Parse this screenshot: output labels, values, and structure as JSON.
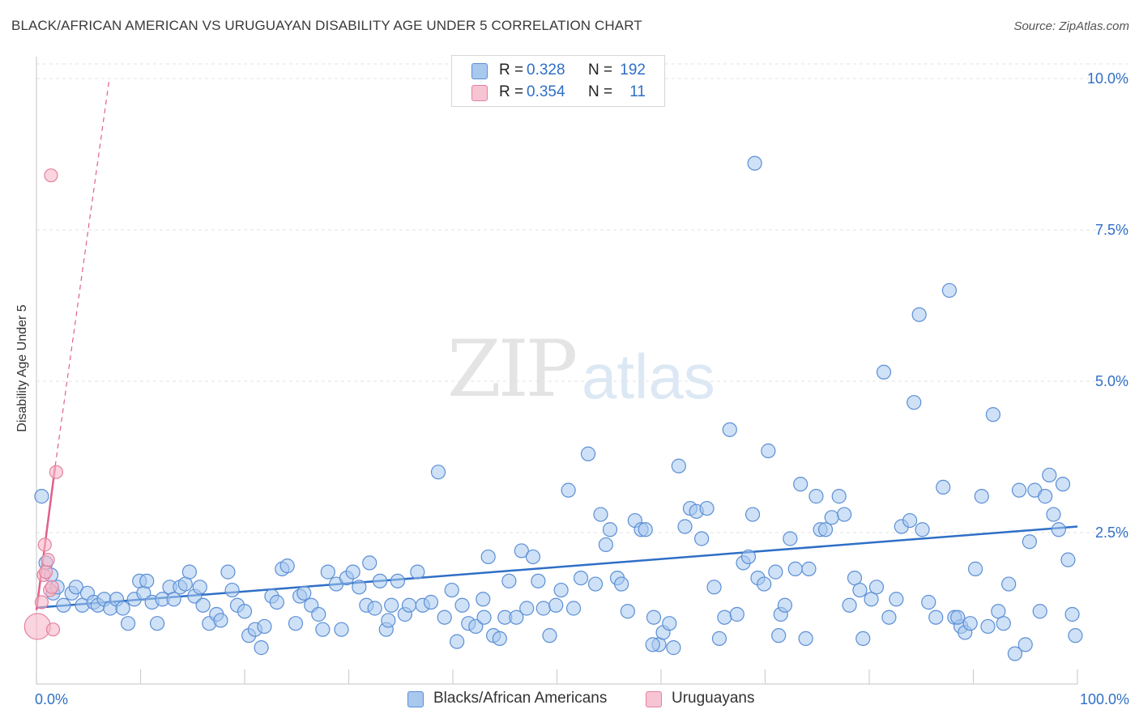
{
  "header": {
    "title": "BLACK/AFRICAN AMERICAN VS URUGUAYAN DISABILITY AGE UNDER 5 CORRELATION CHART",
    "source": "Source: ZipAtlas.com"
  },
  "watermark": {
    "zip": "ZIP",
    "atlas": "atlas"
  },
  "legend": {
    "rows": [
      {
        "r_label": "R =",
        "r_value": "0.328",
        "n_label": "N =",
        "n_value": "192"
      },
      {
        "r_label": "R =",
        "r_value": "0.354",
        "n_label": "N =",
        "n_value": "11"
      }
    ]
  },
  "bottom_legend": {
    "series1": "Blacks/African Americans",
    "series2": "Uruguayans"
  },
  "colors": {
    "blue_fill": "#a8c8ee",
    "blue_stroke": "#5b8fd6",
    "blue_line": "#2f6fc6",
    "pink_fill": "#f6b8c8",
    "pink_stroke": "#e5809e",
    "pink_line": "#e0608a",
    "tick_text": "#2f6fc6"
  },
  "chart_data": {
    "type": "scatter",
    "title": "BLACK/AFRICAN AMERICAN VS URUGUAYAN DISABILITY AGE UNDER 5 CORRELATION CHART",
    "xlabel": "",
    "ylabel": "Disability Age Under 5",
    "xlim": [
      0,
      100
    ],
    "ylim": [
      0,
      10.4
    ],
    "x_tick_labels": [
      "0.0%",
      "100.0%"
    ],
    "y_ticks": [
      2.5,
      5.0,
      7.5,
      10.0
    ],
    "y_tick_labels": [
      "2.5%",
      "5.0%",
      "7.5%",
      "10.0%"
    ],
    "grid": true,
    "series": [
      {
        "name": "Blacks/African Americans",
        "R": 0.328,
        "N": 192,
        "trend": {
          "x": [
            0,
            100
          ],
          "y": [
            1.26,
            2.6
          ]
        },
        "points": [
          [
            0.5,
            3.1
          ],
          [
            0.9,
            2.0
          ],
          [
            1.4,
            1.8
          ],
          [
            1.6,
            1.5
          ],
          [
            2.0,
            1.6
          ],
          [
            2.6,
            1.3
          ],
          [
            3.4,
            1.5
          ],
          [
            3.8,
            1.6
          ],
          [
            4.4,
            1.3
          ],
          [
            4.9,
            1.5
          ],
          [
            5.5,
            1.35
          ],
          [
            5.9,
            1.3
          ],
          [
            6.5,
            1.4
          ],
          [
            7.1,
            1.25
          ],
          [
            7.7,
            1.4
          ],
          [
            8.3,
            1.25
          ],
          [
            8.8,
            1.0
          ],
          [
            9.4,
            1.4
          ],
          [
            9.9,
            1.7
          ],
          [
            10.3,
            1.5
          ],
          [
            10.6,
            1.7
          ],
          [
            11.1,
            1.35
          ],
          [
            11.6,
            1.0
          ],
          [
            12.1,
            1.4
          ],
          [
            12.8,
            1.6
          ],
          [
            13.2,
            1.4
          ],
          [
            13.8,
            1.6
          ],
          [
            14.3,
            1.65
          ],
          [
            14.7,
            1.85
          ],
          [
            15.2,
            1.45
          ],
          [
            15.7,
            1.6
          ],
          [
            16.0,
            1.3
          ],
          [
            16.6,
            1.0
          ],
          [
            17.3,
            1.15
          ],
          [
            17.7,
            1.05
          ],
          [
            18.4,
            1.85
          ],
          [
            18.8,
            1.55
          ],
          [
            19.3,
            1.3
          ],
          [
            20.0,
            1.2
          ],
          [
            20.4,
            0.8
          ],
          [
            21.0,
            0.9
          ],
          [
            21.6,
            0.6
          ],
          [
            21.9,
            0.95
          ],
          [
            22.6,
            1.45
          ],
          [
            23.1,
            1.35
          ],
          [
            23.6,
            1.9
          ],
          [
            24.1,
            1.95
          ],
          [
            24.9,
            1.0
          ],
          [
            25.3,
            1.45
          ],
          [
            25.7,
            1.5
          ],
          [
            26.4,
            1.3
          ],
          [
            27.1,
            1.15
          ],
          [
            27.5,
            0.9
          ],
          [
            28.0,
            1.85
          ],
          [
            28.8,
            1.65
          ],
          [
            29.3,
            0.9
          ],
          [
            29.8,
            1.75
          ],
          [
            30.4,
            1.85
          ],
          [
            31.0,
            1.6
          ],
          [
            31.7,
            1.3
          ],
          [
            32.0,
            2.0
          ],
          [
            32.5,
            1.25
          ],
          [
            33.0,
            1.7
          ],
          [
            33.6,
            0.9
          ],
          [
            34.1,
            1.3
          ],
          [
            34.7,
            1.7
          ],
          [
            35.4,
            1.15
          ],
          [
            35.8,
            1.3
          ],
          [
            36.6,
            1.85
          ],
          [
            37.1,
            1.3
          ],
          [
            37.9,
            1.35
          ],
          [
            38.6,
            3.5
          ],
          [
            39.2,
            1.1
          ],
          [
            39.9,
            1.55
          ],
          [
            40.4,
            0.7
          ],
          [
            40.9,
            1.3
          ],
          [
            41.5,
            1.0
          ],
          [
            42.2,
            0.95
          ],
          [
            42.9,
            1.4
          ],
          [
            43.4,
            2.1
          ],
          [
            43.9,
            0.8
          ],
          [
            44.5,
            0.75
          ],
          [
            45.0,
            1.1
          ],
          [
            45.4,
            1.7
          ],
          [
            46.1,
            1.1
          ],
          [
            46.6,
            2.2
          ],
          [
            47.1,
            1.25
          ],
          [
            47.7,
            2.1
          ],
          [
            48.2,
            1.7
          ],
          [
            48.7,
            1.25
          ],
          [
            49.3,
            0.8
          ],
          [
            49.9,
            1.3
          ],
          [
            50.4,
            1.55
          ],
          [
            51.1,
            3.2
          ],
          [
            51.6,
            1.25
          ],
          [
            52.3,
            1.75
          ],
          [
            53.0,
            3.8
          ],
          [
            53.7,
            1.65
          ],
          [
            54.2,
            2.8
          ],
          [
            54.7,
            2.3
          ],
          [
            55.1,
            2.55
          ],
          [
            55.8,
            1.75
          ],
          [
            56.2,
            1.65
          ],
          [
            56.8,
            1.2
          ],
          [
            57.5,
            2.7
          ],
          [
            58.1,
            2.55
          ],
          [
            58.5,
            2.55
          ],
          [
            59.3,
            1.1
          ],
          [
            59.8,
            0.65
          ],
          [
            60.2,
            0.85
          ],
          [
            60.8,
            1.0
          ],
          [
            61.2,
            0.6
          ],
          [
            61.7,
            3.6
          ],
          [
            62.3,
            2.6
          ],
          [
            62.8,
            2.9
          ],
          [
            63.4,
            2.85
          ],
          [
            63.9,
            2.4
          ],
          [
            64.4,
            2.9
          ],
          [
            65.1,
            1.6
          ],
          [
            65.6,
            0.75
          ],
          [
            66.1,
            1.1
          ],
          [
            66.6,
            4.2
          ],
          [
            67.3,
            1.15
          ],
          [
            67.9,
            2.0
          ],
          [
            68.4,
            2.1
          ],
          [
            68.8,
            2.8
          ],
          [
            69.3,
            1.75
          ],
          [
            69.9,
            1.65
          ],
          [
            70.3,
            3.85
          ],
          [
            71.0,
            1.85
          ],
          [
            71.5,
            1.15
          ],
          [
            71.9,
            1.3
          ],
          [
            72.4,
            2.4
          ],
          [
            72.9,
            1.9
          ],
          [
            73.4,
            3.3
          ],
          [
            73.9,
            0.75
          ],
          [
            74.2,
            1.9
          ],
          [
            74.9,
            3.1
          ],
          [
            75.3,
            2.55
          ],
          [
            75.8,
            2.55
          ],
          [
            76.4,
            2.75
          ],
          [
            77.1,
            3.1
          ],
          [
            77.6,
            2.8
          ],
          [
            78.1,
            1.3
          ],
          [
            78.6,
            1.75
          ],
          [
            79.1,
            1.55
          ],
          [
            79.4,
            0.75
          ],
          [
            80.2,
            1.4
          ],
          [
            80.7,
            1.6
          ],
          [
            81.4,
            5.15
          ],
          [
            81.9,
            1.1
          ],
          [
            82.6,
            1.4
          ],
          [
            83.1,
            2.6
          ],
          [
            83.9,
            2.7
          ],
          [
            84.3,
            4.65
          ],
          [
            84.8,
            6.1
          ],
          [
            85.1,
            2.55
          ],
          [
            85.7,
            1.35
          ],
          [
            86.4,
            1.1
          ],
          [
            87.1,
            3.25
          ],
          [
            87.7,
            6.5
          ],
          [
            88.2,
            1.1
          ],
          [
            88.8,
            0.95
          ],
          [
            89.2,
            0.85
          ],
          [
            89.7,
            1.0
          ],
          [
            90.2,
            1.9
          ],
          [
            90.8,
            3.1
          ],
          [
            91.4,
            0.95
          ],
          [
            91.9,
            4.45
          ],
          [
            92.4,
            1.2
          ],
          [
            92.9,
            1.0
          ],
          [
            93.4,
            1.65
          ],
          [
            94.0,
            0.5
          ],
          [
            94.4,
            3.2
          ],
          [
            95.0,
            0.65
          ],
          [
            95.4,
            2.35
          ],
          [
            95.9,
            3.2
          ],
          [
            96.4,
            1.2
          ],
          [
            96.9,
            3.1
          ],
          [
            97.3,
            3.45
          ],
          [
            97.7,
            2.8
          ],
          [
            98.2,
            2.55
          ],
          [
            98.6,
            3.3
          ],
          [
            99.1,
            2.05
          ],
          [
            99.5,
            1.15
          ],
          [
            99.8,
            0.8
          ],
          [
            69.0,
            8.6
          ],
          [
            59.2,
            0.65
          ],
          [
            71.3,
            0.8
          ],
          [
            88.5,
            1.1
          ],
          [
            33.8,
            1.05
          ],
          [
            43.0,
            1.1
          ]
        ]
      },
      {
        "name": "Uruguayans",
        "R": 0.354,
        "N": 11,
        "trend": {
          "x": [
            0,
            1.8
          ],
          "y": [
            1.22,
            3.6
          ]
        },
        "trend_dashed": {
          "x": [
            1.8,
            7.0
          ],
          "y": [
            3.6,
            10.0
          ]
        },
        "points": [
          [
            0.1,
            0.95
          ],
          [
            0.5,
            1.35
          ],
          [
            0.7,
            1.8
          ],
          [
            0.8,
            2.3
          ],
          [
            0.9,
            1.85
          ],
          [
            1.1,
            2.05
          ],
          [
            1.3,
            1.55
          ],
          [
            1.5,
            1.6
          ],
          [
            1.6,
            0.9
          ],
          [
            1.9,
            3.5
          ],
          [
            1.4,
            8.4
          ]
        ]
      }
    ]
  }
}
